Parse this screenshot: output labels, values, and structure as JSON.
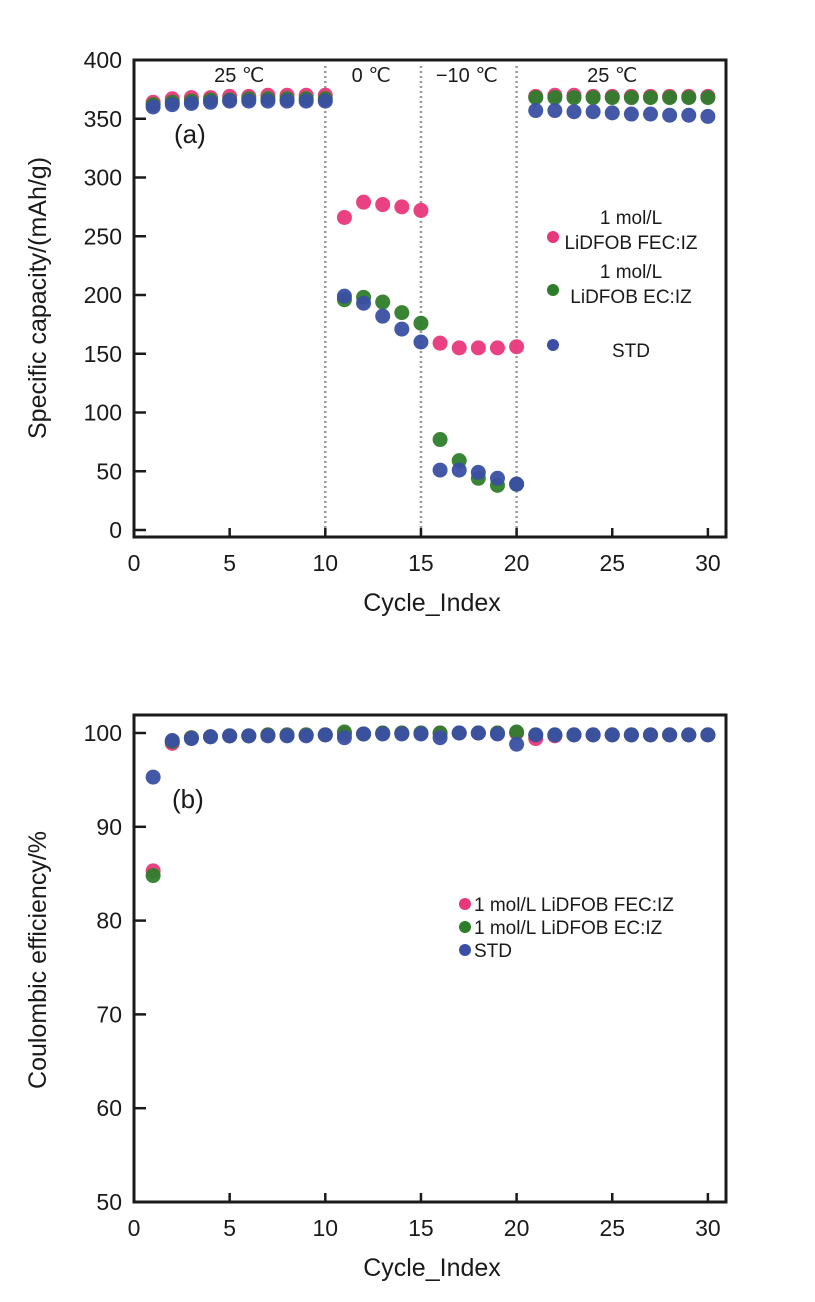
{
  "chart_data": [
    {
      "type": "scatter",
      "panel_label": "(a)",
      "title": "",
      "xlabel": "Cycle_Index",
      "ylabel": "Specific capacity/(mAh/g)",
      "xlim": [
        0,
        31
      ],
      "ylim": [
        -3,
        400
      ],
      "xticks": [
        0,
        5,
        10,
        15,
        20,
        25,
        30
      ],
      "yticks": [
        0,
        50,
        100,
        150,
        200,
        250,
        300,
        350,
        400
      ],
      "grid": false,
      "legend_position": "right",
      "dividers": [
        10,
        15,
        20
      ],
      "annotations": [
        {
          "text": "25 ℃",
          "x": 5.5
        },
        {
          "text": "0 ℃",
          "x": 12.4
        },
        {
          "text": "−10 ℃",
          "x": 17.4
        },
        {
          "text": "25 ℃",
          "x": 25.0
        }
      ],
      "x": [
        1,
        2,
        3,
        4,
        5,
        6,
        7,
        8,
        9,
        10,
        11,
        12,
        13,
        14,
        15,
        16,
        17,
        18,
        19,
        20,
        21,
        22,
        23,
        24,
        25,
        26,
        27,
        28,
        29,
        30
      ],
      "series": [
        {
          "name": "1 mol/L LiDFOB FEC:IZ",
          "legend_lines": [
            "1 mol/L",
            "LiDFOB FEC:IZ"
          ],
          "color": "#e8377a",
          "values": [
            364,
            367,
            368,
            368,
            369,
            369,
            370,
            370,
            370,
            370,
            266,
            279,
            277,
            275,
            272,
            159,
            155,
            155,
            155,
            156,
            369,
            370,
            370,
            369,
            369,
            369,
            369,
            369,
            369,
            369
          ]
        },
        {
          "name": "1 mol/L LiDFOB EC:IZ",
          "legend_lines": [
            "1 mol/L",
            "LiDFOB EC:IZ"
          ],
          "color": "#2e7d2a",
          "values": [
            362,
            364,
            365,
            366,
            366,
            367,
            367,
            367,
            367,
            367,
            196,
            198,
            194,
            185,
            176,
            77,
            59,
            44,
            38,
            39,
            368,
            368,
            368,
            368,
            368,
            368,
            368,
            368,
            368,
            368
          ]
        },
        {
          "name": "STD",
          "legend_lines": [
            "STD"
          ],
          "color": "#3a4fa3",
          "values": [
            360,
            362,
            363,
            364,
            365,
            365,
            365,
            365,
            365,
            365,
            199,
            193,
            182,
            171,
            160,
            51,
            51,
            49,
            44,
            39,
            357,
            357,
            356,
            356,
            355,
            354,
            354,
            353,
            353,
            352
          ]
        }
      ]
    },
    {
      "type": "scatter",
      "panel_label": "(b)",
      "title": "",
      "xlabel": "Cycle_Index",
      "ylabel": "Coulombic efficiency/%",
      "xlim": [
        0,
        31
      ],
      "ylim": [
        50,
        102
      ],
      "xticks": [
        0,
        5,
        10,
        15,
        20,
        25,
        30
      ],
      "yticks": [
        50,
        60,
        70,
        80,
        90,
        100
      ],
      "grid": false,
      "legend_position": "center-right",
      "x": [
        1,
        2,
        3,
        4,
        5,
        6,
        7,
        8,
        9,
        10,
        11,
        12,
        13,
        14,
        15,
        16,
        17,
        18,
        19,
        20,
        21,
        22,
        23,
        24,
        25,
        26,
        27,
        28,
        29,
        30
      ],
      "series": [
        {
          "name": "1 mol/L LiDFOB FEC:IZ",
          "color": "#e8377a",
          "values": [
            85.3,
            98.9,
            99.5,
            99.6,
            99.7,
            99.7,
            99.8,
            99.8,
            99.8,
            99.8,
            99.9,
            99.9,
            100.0,
            100.0,
            100.0,
            100.0,
            100.0,
            100.0,
            100.0,
            100.0,
            99.4,
            99.7,
            99.8,
            99.8,
            99.8,
            99.8,
            99.8,
            99.8,
            99.8,
            99.8
          ]
        },
        {
          "name": "1 mol/L LiDFOB EC:IZ",
          "color": "#2e7d2a",
          "values": [
            84.8,
            99.1,
            99.5,
            99.6,
            99.7,
            99.7,
            99.8,
            99.8,
            99.8,
            99.8,
            100.1,
            99.9,
            100.0,
            100.0,
            100.0,
            100.0,
            100.0,
            100.0,
            100.0,
            100.1,
            99.8,
            99.8,
            99.8,
            99.8,
            99.8,
            99.8,
            99.8,
            99.8,
            99.8,
            99.8
          ]
        },
        {
          "name": "STD",
          "color": "#3a4fa3",
          "values": [
            95.3,
            99.2,
            99.4,
            99.6,
            99.7,
            99.7,
            99.7,
            99.7,
            99.7,
            99.8,
            99.5,
            99.9,
            99.9,
            99.9,
            99.9,
            99.5,
            100.0,
            100.0,
            99.9,
            98.8,
            99.8,
            99.8,
            99.8,
            99.8,
            99.8,
            99.8,
            99.8,
            99.8,
            99.8,
            99.8
          ]
        }
      ]
    }
  ]
}
